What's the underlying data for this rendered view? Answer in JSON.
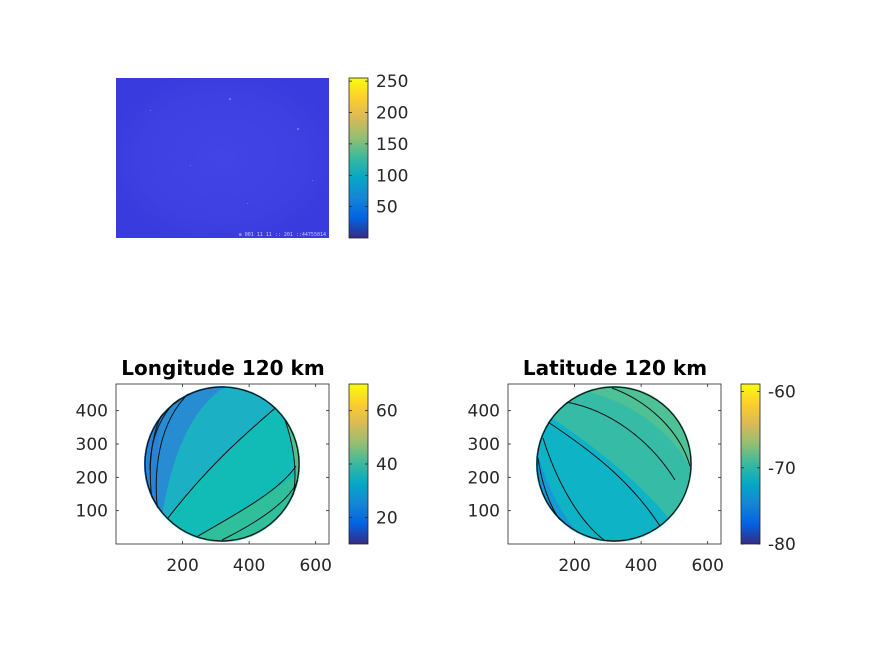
{
  "colors": {
    "parula": [
      "#352a87",
      "#0363e1",
      "#1485d4",
      "#06a7c6",
      "#38b99e",
      "#92bf73",
      "#d9ba56",
      "#fcce2e",
      "#f9fb0e"
    ],
    "image_fill": "#3e3fe0",
    "axis": "#262626"
  },
  "chart_data": [
    {
      "type": "heatmap",
      "title": "",
      "description_key": "raw-image",
      "colorbar": {
        "ticks": [
          50,
          100,
          150,
          200,
          250
        ],
        "clim": [
          0,
          255
        ]
      },
      "annotation": "⊕ 001 11 11 :: 201 ::44755014"
    },
    {
      "type": "heatmap",
      "title": "Longitude 120 km",
      "x_ticks": [
        200,
        400,
        600
      ],
      "y_ticks": [
        100,
        200,
        300,
        400
      ],
      "xlim": [
        0,
        640
      ],
      "ylim": [
        0,
        480
      ],
      "colorbar": {
        "ticks": [
          20,
          40,
          60
        ],
        "clim": [
          10,
          70
        ]
      },
      "disk_values": [
        18,
        25,
        32,
        36,
        40,
        44,
        48,
        52
      ]
    },
    {
      "type": "heatmap",
      "title": "Latitude 120 km",
      "x_ticks": [
        200,
        400,
        600
      ],
      "y_ticks": [
        100,
        200,
        300,
        400
      ],
      "xlim": [
        0,
        640
      ],
      "ylim": [
        0,
        480
      ],
      "colorbar": {
        "ticks": [
          -60,
          -70,
          -80
        ],
        "clim": [
          -80,
          -59
        ]
      },
      "disk_values": [
        -76,
        -74,
        -72,
        -69,
        -67,
        -66,
        -65
      ]
    }
  ]
}
